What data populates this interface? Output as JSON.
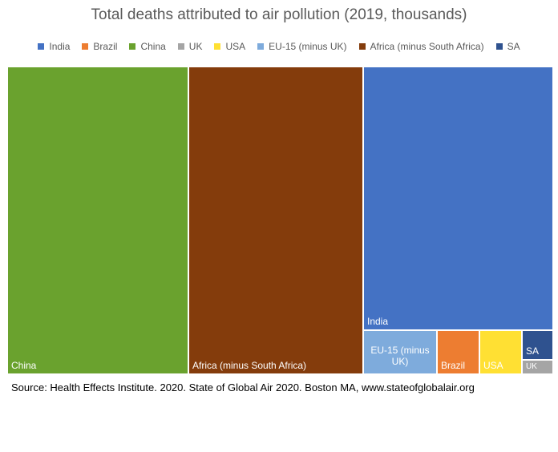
{
  "chart_data": {
    "type": "treemap",
    "title": "Total deaths attributed to air pollution (2019, thousands)",
    "source": "Source: Health Effects Institute. 2020. State of Global Air 2020. Boston MA, www.stateofglobalair.org",
    "legend": [
      "India",
      "Brazil",
      "China",
      "UK",
      "USA",
      "EU-15 (minus UK)",
      "Africa (minus South Africa)",
      "SA"
    ],
    "colors": {
      "India": "#4472c4",
      "Brazil": "#ed7d31",
      "China": "#6aa22e",
      "UK": "#a5a5a5",
      "USA": "#ffe033",
      "EU-15 (minus UK)": "#7eabdc",
      "Africa (minus South Africa)": "#843c0c",
      "SA": "#2f528f"
    },
    "series": [
      {
        "name": "China",
        "label": "China",
        "value": 1850
      },
      {
        "name": "Africa (minus South Africa)",
        "label": "Africa (minus South Africa)",
        "value": 1800
      },
      {
        "name": "India",
        "label": "India",
        "value": 1670
      },
      {
        "name": "EU-15 (minus UK)",
        "label": "EU-15 (minus UK)",
        "value": 200
      },
      {
        "name": "Brazil",
        "label": "Brazil",
        "value": 118
      },
      {
        "name": "USA",
        "label": "USA",
        "value": 120
      },
      {
        "name": "SA",
        "label": "SA",
        "value": 72
      },
      {
        "name": "UK",
        "label": "UK",
        "value": 34
      }
    ]
  }
}
